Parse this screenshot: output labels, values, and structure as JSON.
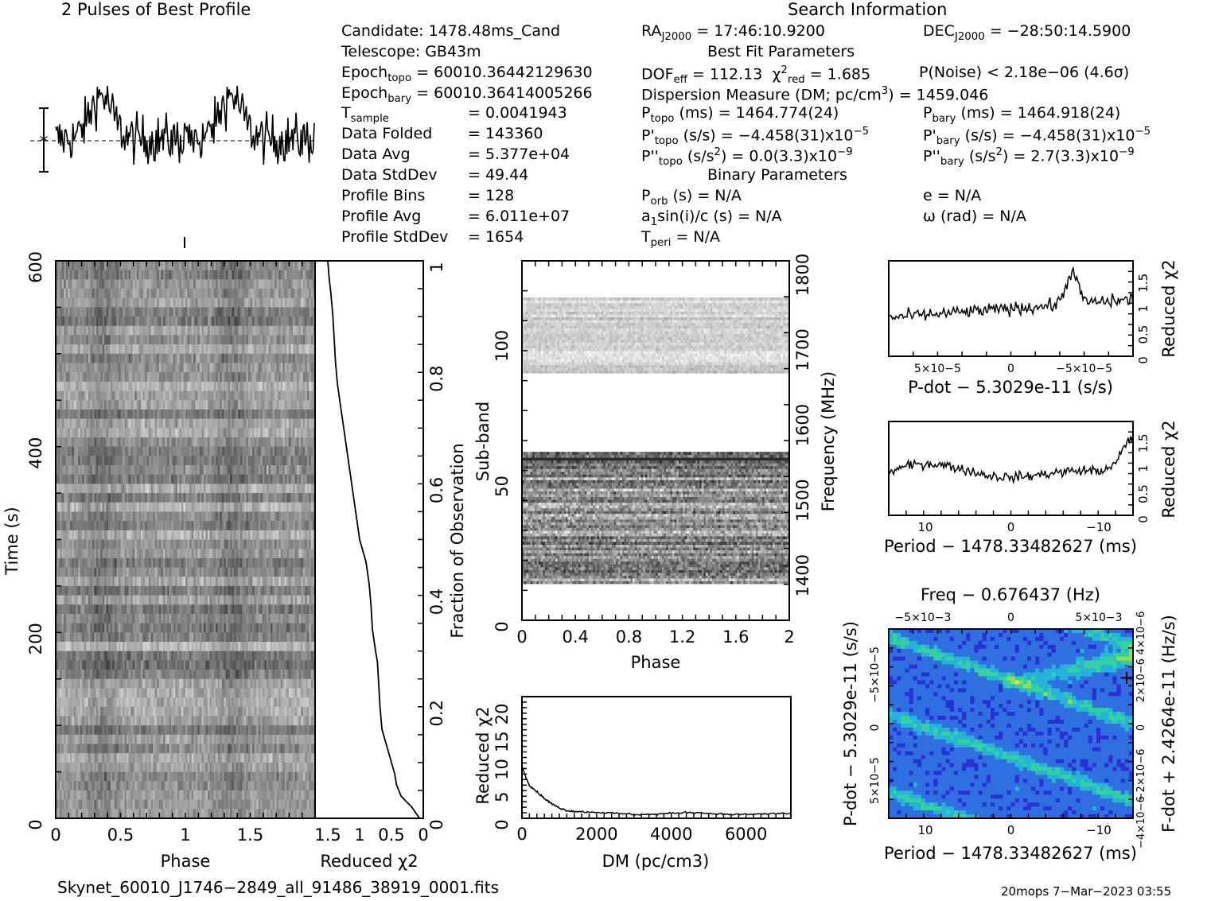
{
  "header": {
    "profile_title": "2 Pulses of Best Profile",
    "search_title": "Search Information",
    "best_fit_title": "Best Fit Parameters",
    "binary_title": "Binary Parameters"
  },
  "info": {
    "candidate": "Candidate:   1478.48ms_Cand",
    "telescope": "Telescope:   GB43m",
    "epoch_topo_label": "Epoch",
    "epoch_topo_sub": "topo",
    "epoch_topo_val": " = 60010.36442129630",
    "epoch_bary_label": "Epoch",
    "epoch_bary_sub": "bary",
    "epoch_bary_val": " = 60010.36414005266",
    "tsample_label": "T",
    "tsample_sub": "sample",
    "tsample_val": "=   0.0041943",
    "data_folded_label": "Data Folded",
    "data_folded_val": "=   143360",
    "data_avg_label": "Data Avg",
    "data_avg_val": "=   5.377e+04",
    "data_std_label": "Data StdDev",
    "data_std_val": "=   49.44",
    "prof_bins_label": "Profile Bins",
    "prof_bins_val": "=   128",
    "prof_avg_label": "Profile Avg",
    "prof_avg_val": "=   6.011e+07",
    "prof_std_label": "Profile StdDev",
    "prof_std_val": "=   1654",
    "ra_label": "RA",
    "ra_sub": "J2000",
    "ra_val": " = 17:46:10.9200",
    "dec_label": "DEC",
    "dec_sub": "J2000",
    "dec_val": " = −28:50:14.5900",
    "dof_label": "DOF",
    "dof_sub": "eff",
    "dof_val": " = 112.13",
    "chi_label": "χ",
    "chi_sup": "2",
    "chi_sub": "red",
    "chi_val": " = 1.685",
    "pnoise": "P(Noise) < 2.18e−06   (4.6σ)",
    "dm_pre": "Dispersion Measure (DM; pc/cm",
    "dm_sup": "3",
    "dm_post": ") = 1459.046",
    "ptopo_label": "P",
    "ptopo_sub": "topo",
    "ptopo_val": " (ms)  =   1464.774(24)",
    "pbary_label": "P",
    "pbary_sub": "bary",
    "pbary_val": " (ms)  =   1464.918(24)",
    "pdtopo_label": "P'",
    "pdtopo_sub": "topo",
    "pdtopo_val": " (s/s) = −4.458(31)x10",
    "pdtopo_sup": "−5",
    "pdbary_label": "P'",
    "pdbary_sub": "bary",
    "pdbary_val": " (s/s) = −4.458(31)x10",
    "pdbary_sup": "−5",
    "pddtopo_label": "P''",
    "pddtopo_sub": "topo",
    "pddtopo_val": " (s/s",
    "pddtopo_sup": "2",
    "pddtopo_val2": ") = 0.0(3.3)x10",
    "pddtopo_sup2": "−9",
    "pddbary_label": "P''",
    "pddbary_sub": "bary",
    "pddbary_val": " (s/s",
    "pddbary_sup": "2",
    "pddbary_val2": ") =  2.7(3.3)x10",
    "pddbary_sup2": "−9",
    "porb_label": "P",
    "porb_sub": "orb",
    "porb_val": " (s) = N/A",
    "ecc": "e = N/A",
    "asini": "a",
    "asini_sub": "1",
    "asini_val": "sin(i)/c (s) = N/A",
    "omega": "ω (rad) = N/A",
    "tperi_label": "T",
    "tperi_sub": "peri",
    "tperi_val": " = N/A"
  },
  "footer": {
    "filename": "Skynet_60010_J1746−2849_all_91486_38919_0001.fits",
    "stamp": "20mops   7−Mar−2023 03:55"
  },
  "chart_data": [
    {
      "type": "line",
      "id": "profile",
      "title": "2 Pulses of Best Profile",
      "x": "phase 0–2 (two copies of 128-bin profile)",
      "description_values": "noisy profile, broad peak near phase 0.4 and 1.4"
    },
    {
      "type": "heatmap",
      "id": "time-phase",
      "xlabel": "Phase",
      "ylabel": "Time (s)",
      "xlim": [
        0,
        2
      ],
      "ylim": [
        0,
        600
      ],
      "xticks": [
        "0",
        "0.5",
        "1",
        "1.5"
      ],
      "yticks": [
        "0",
        "200",
        "400",
        "600"
      ]
    },
    {
      "type": "line",
      "id": "time-chi2",
      "xlabel": "Reduced χ2",
      "ylabel": "Fraction of Observation",
      "xticks": [
        "1.5",
        "1",
        "0.5",
        "0"
      ],
      "yticks": [
        "0",
        "0.2",
        "0.4",
        "0.6",
        "0.8",
        "1"
      ],
      "x": [
        0.06,
        0.18,
        0.35,
        0.42,
        0.45,
        0.5,
        0.55,
        0.6,
        0.65,
        0.68,
        0.7,
        0.72,
        0.75,
        0.8,
        0.82,
        0.85,
        0.9,
        1.0,
        1.05,
        1.1,
        1.15,
        1.2,
        1.25,
        1.3,
        1.35,
        1.38,
        1.4,
        1.42,
        1.45,
        1.48,
        1.5
      ],
      "y": [
        0.0,
        0.02,
        0.04,
        0.06,
        0.08,
        0.1,
        0.12,
        0.14,
        0.16,
        0.2,
        0.24,
        0.28,
        0.3,
        0.34,
        0.38,
        0.42,
        0.46,
        0.5,
        0.54,
        0.58,
        0.62,
        0.66,
        0.7,
        0.74,
        0.78,
        0.82,
        0.86,
        0.9,
        0.94,
        0.97,
        1.0
      ]
    },
    {
      "type": "heatmap",
      "id": "subband-phase",
      "xlabel": "Phase",
      "ylabel": "Sub-band",
      "y2label": "Frequency (MHz)",
      "xticks": [
        "0",
        "0.4",
        "0.8",
        "1.2",
        "1.6",
        "2"
      ],
      "yticks": [
        "0",
        "50",
        "100"
      ],
      "y2ticks": [
        "1400",
        "1500",
        "1600",
        "1700",
        "1800"
      ]
    },
    {
      "type": "line",
      "id": "dm-chi2",
      "xlabel": "DM (pc/cm3)",
      "ylabel": "Reduced χ2",
      "xticks": [
        "0",
        "2000",
        "4000",
        "6000"
      ],
      "yticks": [
        "0",
        "5",
        "10",
        "15",
        "20"
      ],
      "xlim": [
        0,
        7200
      ],
      "ylim": [
        0,
        22
      ],
      "x": [
        0,
        100,
        200,
        400,
        600,
        800,
        1000,
        1200,
        1500,
        2000,
        2500,
        3000,
        3500,
        4000,
        4500,
        5000,
        5500,
        6000,
        6500,
        7200
      ],
      "y": [
        9.5,
        7.5,
        6.0,
        4.8,
        3.6,
        2.6,
        1.9,
        1.4,
        1.2,
        1.1,
        0.9,
        0.7,
        0.7,
        0.9,
        1.1,
        0.9,
        0.7,
        0.7,
        0.8,
        0.9
      ]
    },
    {
      "type": "line",
      "id": "pdot-chi2",
      "xlabel": "P-dot − 5.3029e-11 (s/s)",
      "ylabel": "Reduced χ2",
      "xticks": [
        "5×10−5",
        "0",
        "−5×10−5"
      ],
      "yticks": [
        "0",
        "0.5",
        "1",
        "1.5"
      ]
    },
    {
      "type": "line",
      "id": "period-chi2",
      "xlabel": "Period − 1478.33482627 (ms)",
      "ylabel": "Reduced χ2",
      "xticks": [
        "10",
        "0",
        "−10"
      ],
      "yticks": [
        "0",
        "0.5",
        "1",
        "1.5"
      ]
    },
    {
      "type": "heatmap",
      "id": "p-pdot",
      "xlabel": "Period − 1478.33482627 (ms)",
      "x2label": "Freq − 0.676437 (Hz)",
      "ylabel": "P-dot − 5.3029e-11 (s/s)",
      "y2label": "F-dot + 2.4264e-11 (Hz/s)",
      "xticks": [
        "10",
        "0",
        "−10"
      ],
      "x2ticks": [
        "−5×10−3",
        "0",
        "5×10−3"
      ],
      "yticks": [
        "5×10−5",
        "0",
        "−5×10−5"
      ],
      "y2ticks": [
        "−4×10−6",
        "−2×10−6",
        "0",
        "2×10−6",
        "4×10−6"
      ]
    }
  ]
}
